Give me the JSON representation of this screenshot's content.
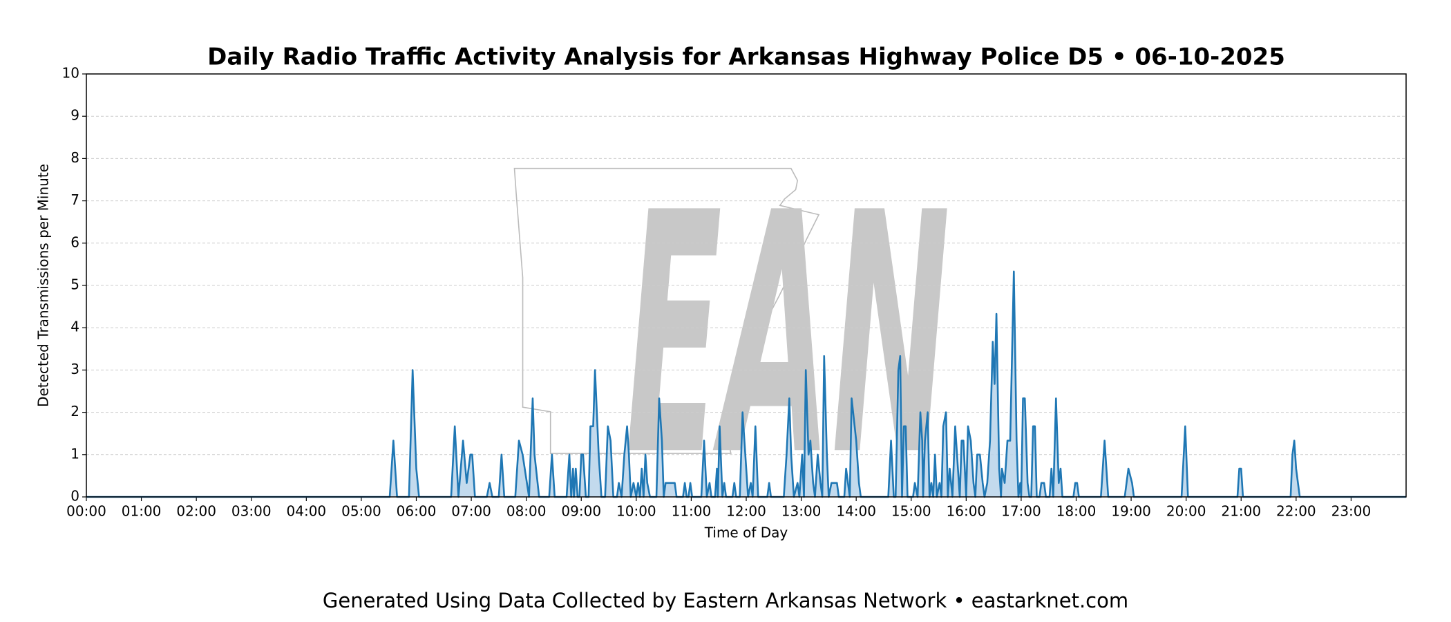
{
  "chart_data": {
    "type": "line",
    "title": "Daily Radio Traffic Activity Analysis for Arkansas Highway Police D5 • 06-10-2025",
    "xlabel": "Time of Day",
    "ylabel": "Detected Transmissions per Minute",
    "footer": "Generated Using Data Collected by Eastern Arkansas Network • eastarknet.com",
    "watermark": "EAN",
    "color": "#1f77b4",
    "fill": "#b9d4ea",
    "grid": true,
    "xlim": [
      0,
      1440
    ],
    "ylim": [
      0,
      10
    ],
    "yticks": [
      0,
      1,
      2,
      3,
      4,
      5,
      6,
      7,
      8,
      9,
      10
    ],
    "xticks": [
      {
        "value": 0,
        "label": "00:00"
      },
      {
        "value": 60,
        "label": "01:00"
      },
      {
        "value": 120,
        "label": "02:00"
      },
      {
        "value": 180,
        "label": "03:00"
      },
      {
        "value": 240,
        "label": "04:00"
      },
      {
        "value": 300,
        "label": "05:00"
      },
      {
        "value": 360,
        "label": "06:00"
      },
      {
        "value": 420,
        "label": "07:00"
      },
      {
        "value": 480,
        "label": "08:00"
      },
      {
        "value": 540,
        "label": "09:00"
      },
      {
        "value": 600,
        "label": "10:00"
      },
      {
        "value": 660,
        "label": "11:00"
      },
      {
        "value": 720,
        "label": "12:00"
      },
      {
        "value": 780,
        "label": "13:00"
      },
      {
        "value": 840,
        "label": "14:00"
      },
      {
        "value": 900,
        "label": "15:00"
      },
      {
        "value": 960,
        "label": "16:00"
      },
      {
        "value": 1020,
        "label": "17:00"
      },
      {
        "value": 1080,
        "label": "18:00"
      },
      {
        "value": 1140,
        "label": "19:00"
      },
      {
        "value": 1200,
        "label": "20:00"
      },
      {
        "value": 1260,
        "label": "21:00"
      },
      {
        "value": 1320,
        "label": "22:00"
      },
      {
        "value": 1380,
        "label": "23:00"
      }
    ],
    "x": [
      0,
      331,
      335,
      339,
      352,
      356,
      360,
      363,
      398,
      402,
      406,
      411,
      415,
      419,
      421,
      424,
      437,
      440,
      443,
      450,
      453,
      456,
      468,
      472,
      476,
      483,
      487,
      489,
      494,
      505,
      508,
      511,
      524,
      527,
      529,
      531,
      532,
      534,
      536,
      538,
      540,
      542,
      545,
      548,
      550,
      553,
      555,
      559,
      562,
      566,
      569,
      572,
      575,
      579,
      581,
      584,
      587,
      590,
      592,
      594,
      597,
      600,
      602,
      604,
      606,
      608,
      610,
      612,
      615,
      622,
      625,
      628,
      630,
      632,
      637,
      642,
      644,
      651,
      653,
      655,
      657,
      659,
      661,
      671,
      674,
      677,
      680,
      682,
      686,
      688,
      689,
      691,
      694,
      696,
      698,
      705,
      707,
      709,
      713,
      716,
      719,
      722,
      725,
      727,
      730,
      733,
      743,
      745,
      747,
      761,
      764,
      767,
      769,
      772,
      776,
      778,
      781,
      783,
      785,
      788,
      790,
      793,
      795,
      798,
      801,
      803,
      805,
      808,
      810,
      813,
      819,
      821,
      827,
      829,
      831,
      833,
      835,
      840,
      843,
      845,
      875,
      878,
      881,
      883,
      886,
      888,
      890,
      892,
      894,
      896,
      902,
      904,
      907,
      910,
      912,
      913,
      915,
      918,
      920,
      922,
      924,
      926,
      928,
      931,
      933,
      935,
      938,
      940,
      942,
      945,
      948,
      951,
      953,
      955,
      957,
      960,
      962,
      965,
      968,
      970,
      972,
      975,
      978,
      980,
      983,
      986,
      989,
      991,
      993,
      996,
      998,
      999,
      1002,
      1005,
      1008,
      1012,
      1015,
      1017,
      1019,
      1020,
      1022,
      1024,
      1027,
      1029,
      1031,
      1033,
      1035,
      1037,
      1040,
      1042,
      1045,
      1047,
      1051,
      1053,
      1055,
      1058,
      1061,
      1063,
      1065,
      1077,
      1079,
      1081,
      1083,
      1107,
      1111,
      1115,
      1133,
      1137,
      1141,
      1143,
      1195,
      1199,
      1202,
      1256,
      1258,
      1260,
      1262,
      1314,
      1316,
      1318,
      1320,
      1322,
      1324,
      1440
    ],
    "values": [
      0,
      0,
      1.33,
      0,
      0,
      3,
      0.67,
      0,
      0,
      1.67,
      0,
      1.33,
      0.33,
      1,
      1,
      0,
      0,
      0.33,
      0,
      0,
      1,
      0,
      0,
      1.33,
      1,
      0,
      2.33,
      1,
      0,
      0,
      1,
      0,
      0,
      1,
      0,
      0.67,
      0,
      0.67,
      0,
      0,
      1,
      1,
      0,
      0,
      1.67,
      1.67,
      3,
      1,
      0,
      0,
      1.67,
      1.33,
      0,
      0,
      0.33,
      0,
      1,
      1.67,
      1,
      0,
      0.33,
      0,
      0.33,
      0,
      0.67,
      0,
      1,
      0.33,
      0,
      0,
      2.33,
      1.33,
      0,
      0.33,
      0.33,
      0.33,
      0,
      0,
      0.33,
      0,
      0,
      0.33,
      0,
      0,
      1.33,
      0,
      0.33,
      0,
      0,
      0.67,
      0,
      1.67,
      0,
      0.33,
      0,
      0,
      0.33,
      0,
      0,
      2,
      1,
      0,
      0.33,
      0,
      1.67,
      0,
      0,
      0.33,
      0,
      0,
      1,
      2.33,
      1,
      0,
      0.33,
      0,
      1,
      0,
      3,
      1,
      1.33,
      0.33,
      0,
      1,
      0.33,
      0,
      3.33,
      1,
      0,
      0.33,
      0.33,
      0,
      0,
      0.67,
      0.33,
      0,
      2.33,
      1.33,
      0.33,
      0,
      0,
      1.33,
      0,
      0,
      3,
      3.33,
      0,
      1.67,
      1.67,
      0,
      0,
      0.33,
      0,
      2,
      1.33,
      0,
      1.33,
      2,
      0,
      0.33,
      0,
      1,
      0,
      0.33,
      0,
      1.67,
      2,
      0,
      0.67,
      0,
      1.67,
      0.67,
      0,
      1.33,
      1.33,
      0,
      1.67,
      1.33,
      0.33,
      0,
      1,
      1,
      0.33,
      0,
      0.33,
      1.33,
      3.67,
      2.67,
      4.33,
      0.67,
      0,
      0.67,
      0.33,
      1.33,
      1.33,
      5.33,
      1.33,
      0,
      0.33,
      0,
      2.33,
      2.33,
      0.33,
      0,
      0,
      1.67,
      1.67,
      0,
      0,
      0.33,
      0.33,
      0,
      0,
      0.67,
      0,
      2.33,
      0.33,
      0.67,
      0,
      0,
      0.33,
      0.33,
      0,
      0,
      1.33,
      0,
      0,
      0.67,
      0.33,
      0,
      0,
      1.67,
      0,
      0,
      0.67,
      0.67,
      0,
      0,
      1,
      1.33,
      0.67,
      0.33,
      0,
      0
    ]
  }
}
